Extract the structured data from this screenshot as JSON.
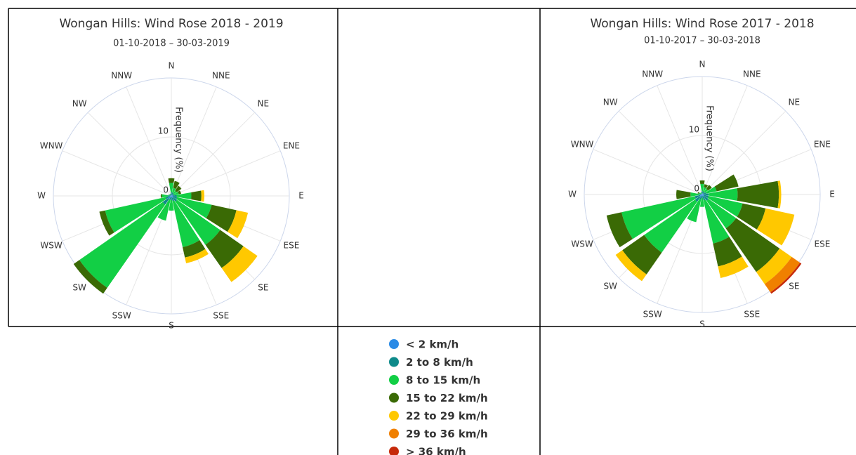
{
  "chart_data": [
    {
      "type": "wind-rose",
      "title": "Wongan Hills: Wind Rose 2018 - 2019",
      "subtitle": "01-10-2018 – 30-03-2019",
      "radial_axis_label": "Frequency (%)",
      "categories": [
        "N",
        "NNE",
        "NE",
        "ENE",
        "E",
        "ESE",
        "SE",
        "SSE",
        "S",
        "SSW",
        "SW",
        "WSW",
        "W",
        "WNW",
        "NW",
        "NNW"
      ],
      "rlim": [
        0,
        20
      ],
      "rticks": [
        0,
        10
      ],
      "series": [
        {
          "name": "< 2 km/h",
          "color": "#2b8be6",
          "values": [
            0.2,
            0.2,
            0.2,
            0.2,
            0.3,
            0.3,
            0.4,
            0.3,
            0.2,
            0.2,
            0.6,
            0.3,
            0.2,
            0.1,
            0.1,
            0.1
          ]
        },
        {
          "name": "2 to 8 km/h",
          "color": "#0e8a8a",
          "values": [
            0.4,
            0.4,
            0.3,
            0.3,
            0.6,
            0.7,
            0.8,
            0.6,
            0.5,
            0.5,
            1.2,
            0.7,
            0.4,
            0.2,
            0.2,
            0.2
          ]
        },
        {
          "name": "8 to 15 km/h",
          "color": "#12cf45",
          "values": [
            1.6,
            0.8,
            0.6,
            0.8,
            2.5,
            6.0,
            8.9,
            8.0,
            1.8,
            3.6,
            17.2,
            10.5,
            1.0,
            0.2,
            0.1,
            0.1
          ]
        },
        {
          "name": "15 to 22 km/h",
          "color": "#3a6a05",
          "values": [
            0.8,
            1.2,
            1.0,
            0.4,
            1.7,
            4.3,
            4.8,
            1.8,
            0,
            0,
            1.2,
            1.0,
            0.2,
            0,
            0,
            0
          ]
        },
        {
          "name": "22 to 29 km/h",
          "color": "#ffc800",
          "values": [
            0,
            0,
            0,
            0,
            0.5,
            2.0,
            2.9,
            1.0,
            0,
            0,
            0,
            0,
            0,
            0,
            0,
            0
          ]
        },
        {
          "name": "29 to 36 km/h",
          "color": "#f08000",
          "values": [
            0,
            0,
            0,
            0,
            0,
            0,
            0,
            0,
            0,
            0,
            0,
            0,
            0,
            0,
            0,
            0
          ]
        },
        {
          "name": "> 36 km/h",
          "color": "#c62a0a",
          "values": [
            0,
            0,
            0,
            0,
            0,
            0,
            0,
            0,
            0,
            0,
            0,
            0,
            0,
            0,
            0,
            0
          ]
        }
      ]
    },
    {
      "type": "wind-rose",
      "title": "Wongan Hills: Wind Rose 2017 - 2018",
      "subtitle": "01-10-2017 – 30-03-2018",
      "radial_axis_label": "Frequency (%)",
      "categories": [
        "N",
        "NNE",
        "NE",
        "ENE",
        "E",
        "ESE",
        "SE",
        "SSE",
        "S",
        "SSW",
        "SW",
        "WSW",
        "W",
        "WNW",
        "NW",
        "NNW"
      ],
      "rlim": [
        0,
        20
      ],
      "rticks": [
        0,
        10
      ],
      "series": [
        {
          "color": "#2b8be6",
          "values": [
            0.2,
            0.2,
            0.2,
            0.2,
            0.3,
            0.3,
            0.4,
            0.3,
            0.2,
            0.3,
            0.5,
            0.4,
            0.2,
            0.1,
            0.1,
            0.1
          ]
        },
        {
          "color": "#0e8a8a",
          "values": [
            0.4,
            0.3,
            0.3,
            0.5,
            0.8,
            0.8,
            0.9,
            0.7,
            0.4,
            0.6,
            1.0,
            0.9,
            0.4,
            0.2,
            0.1,
            0.1
          ]
        },
        {
          "color": "#12cf45",
          "values": [
            1.2,
            0.8,
            0.7,
            1.8,
            4.9,
            5.9,
            5.7,
            7.5,
            1.5,
            3.9,
            10.5,
            12.7,
            1.4,
            0.3,
            0.2,
            0.2
          ]
        },
        {
          "color": "#3a6a05",
          "values": [
            0.6,
            0.5,
            0.8,
            3.8,
            7.0,
            4.0,
            9.0,
            4.0,
            0,
            0,
            4.5,
            2.6,
            2.4,
            0.2,
            0,
            0
          ]
        },
        {
          "color": "#ffc800",
          "values": [
            0,
            0,
            0,
            0,
            0.4,
            5.0,
            2.5,
            2.0,
            0,
            0,
            1.4,
            0,
            0,
            0,
            0,
            0
          ]
        },
        {
          "color": "#f08000",
          "values": [
            0,
            0,
            0,
            0,
            0,
            0,
            1.7,
            0,
            0,
            0,
            0,
            0,
            0,
            0,
            0,
            0
          ]
        },
        {
          "color": "#c62a0a",
          "values": [
            0,
            0,
            0,
            0,
            0,
            0,
            0.3,
            0,
            0,
            0,
            0,
            0,
            0,
            0,
            0,
            0
          ]
        }
      ]
    }
  ]
}
